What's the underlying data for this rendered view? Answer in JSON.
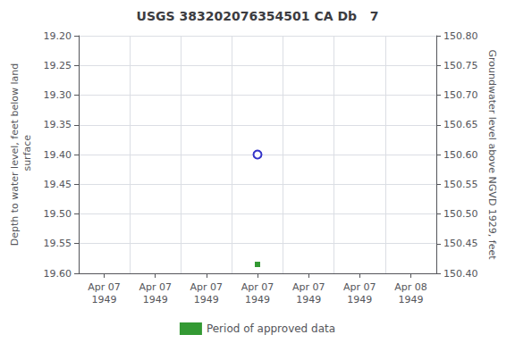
{
  "chart_data": {
    "type": "scatter",
    "title": "USGS 383202076354501 CA Db   7",
    "ylabel": "Depth to water level, feet below land\n surface",
    "y2label": "Groundwater level above NGVD 1929, feet",
    "categories": [
      "Apr 07\n1949",
      "Apr 07\n1949",
      "Apr 07\n1949",
      "Apr 07\n1949",
      "Apr 07\n1949",
      "Apr 07\n1949",
      "Apr 08\n1949"
    ],
    "series": [
      {
        "color": "#0000bb",
        "marker": "open-circle",
        "values": [
          null,
          null,
          null,
          19.4,
          null,
          null,
          null
        ]
      },
      {
        "name": "Period of approved data",
        "color": "#008000",
        "marker": "square",
        "values": [
          null,
          null,
          null,
          19.585,
          null,
          null,
          null
        ]
      }
    ],
    "ylim": [
      19.6,
      19.2
    ],
    "yticks": [
      {
        "value": 19.2,
        "label": "19.20"
      },
      19.25,
      {
        "value": 19.3,
        "label": "19.30"
      },
      19.35,
      {
        "value": 19.4,
        "label": "19.40"
      },
      19.45,
      {
        "value": 19.5,
        "label": "19.50"
      },
      19.55,
      {
        "value": 19.6,
        "label": "19.60"
      }
    ],
    "y2lim": [
      150.4,
      150.8
    ],
    "y2ticks": [
      {
        "value": 150.8,
        "label": "150.80"
      },
      150.75,
      {
        "value": 150.7,
        "label": "150.70"
      },
      150.65,
      {
        "value": 150.6,
        "label": "150.60"
      },
      150.55,
      {
        "value": 150.5,
        "label": "150.50"
      },
      150.45,
      {
        "value": 150.4,
        "label": "150.40"
      }
    ],
    "grid": true,
    "legend": "bottom"
  }
}
